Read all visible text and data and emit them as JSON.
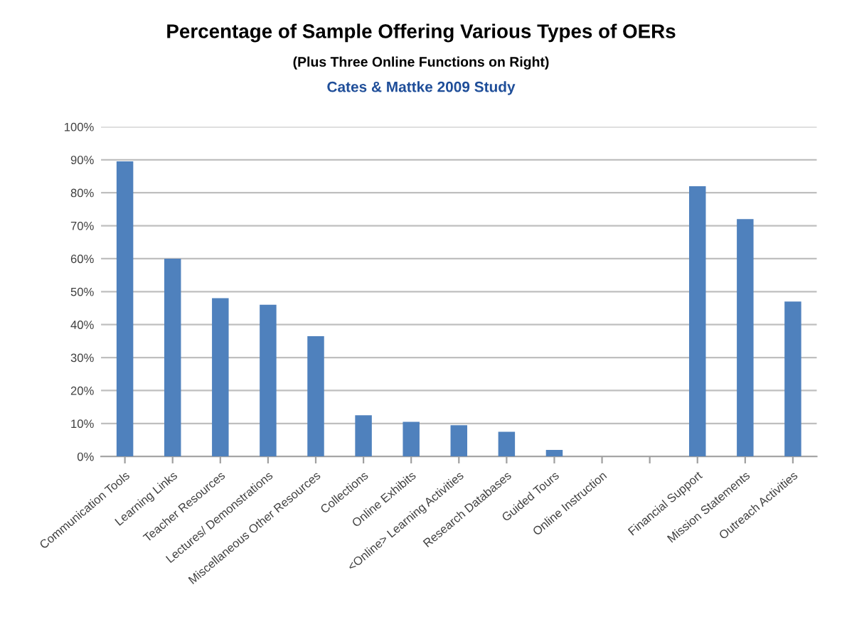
{
  "chart_data": {
    "type": "bar",
    "title": "Percentage of Sample Offering Various Types of OERs",
    "subtitle": "(Plus Three Online Functions on Right)",
    "annotations": [
      "Cates & Mattke 2009 Study"
    ],
    "categories": [
      "Communication Tools",
      "Learning Links",
      "Teacher Resources",
      "Lectures/ Demonstrations",
      "Miscellaneous Other Resources",
      "Collections",
      "Online Exhibits",
      "<Online> Learning Activities",
      "Research Databases",
      "Guided Tours",
      "Online Instruction",
      null,
      "Financial Support",
      "Mission Statements",
      "Outreach Activities"
    ],
    "values": [
      89.5,
      60,
      48,
      46,
      36.5,
      12.5,
      10.5,
      9.5,
      7.5,
      2,
      0,
      null,
      82,
      72,
      47
    ],
    "color": "#4f81bd",
    "ylim": [
      0,
      100
    ],
    "yticks": [
      {
        "value": 0,
        "label": "0%"
      },
      {
        "value": 10,
        "label": "10%"
      },
      {
        "value": 20,
        "label": "20%"
      },
      {
        "value": 30,
        "label": "30%"
      },
      {
        "value": 40,
        "label": "40%"
      },
      {
        "value": 50,
        "label": "50%"
      },
      {
        "value": 60,
        "label": "60%"
      },
      {
        "value": 70,
        "label": "70%"
      },
      {
        "value": 80,
        "label": "80%"
      },
      {
        "value": 90,
        "label": "90%"
      },
      {
        "value": 100,
        "label": "100%"
      }
    ],
    "grid": "y"
  }
}
